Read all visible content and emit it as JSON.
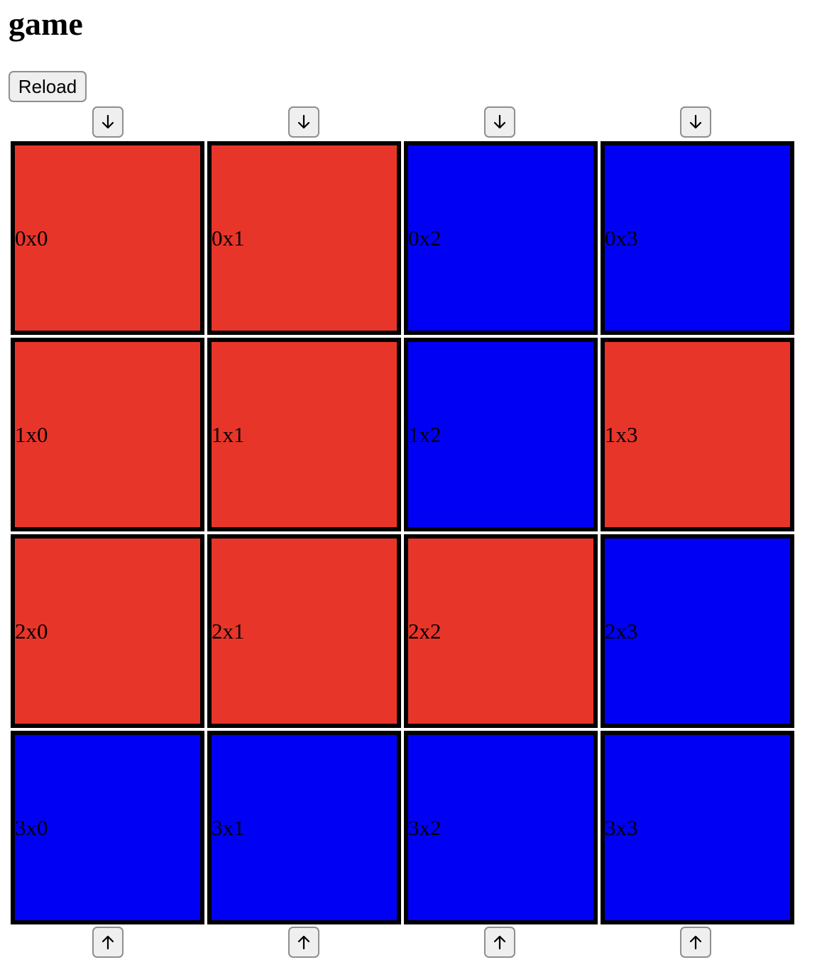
{
  "title": "game",
  "reload_label": "Reload",
  "colors": {
    "red": "#e8352a",
    "blue": "#0000f5",
    "border": "#000000"
  },
  "top_arrows": [
    "down-arrow-icon",
    "down-arrow-icon",
    "down-arrow-icon",
    "down-arrow-icon"
  ],
  "bottom_arrows": [
    "up-arrow-icon",
    "up-arrow-icon",
    "up-arrow-icon",
    "up-arrow-icon"
  ],
  "grid": {
    "rows": [
      [
        {
          "label": "0x0",
          "color": "red"
        },
        {
          "label": "0x1",
          "color": "red"
        },
        {
          "label": "0x2",
          "color": "blue"
        },
        {
          "label": "0x3",
          "color": "blue"
        }
      ],
      [
        {
          "label": "1x0",
          "color": "red"
        },
        {
          "label": "1x1",
          "color": "red"
        },
        {
          "label": "1x2",
          "color": "blue"
        },
        {
          "label": "1x3",
          "color": "red"
        }
      ],
      [
        {
          "label": "2x0",
          "color": "red"
        },
        {
          "label": "2x1",
          "color": "red"
        },
        {
          "label": "2x2",
          "color": "red"
        },
        {
          "label": "2x3",
          "color": "blue"
        }
      ],
      [
        {
          "label": "3x0",
          "color": "blue"
        },
        {
          "label": "3x1",
          "color": "blue"
        },
        {
          "label": "3x2",
          "color": "blue"
        },
        {
          "label": "3x3",
          "color": "blue"
        }
      ]
    ]
  }
}
